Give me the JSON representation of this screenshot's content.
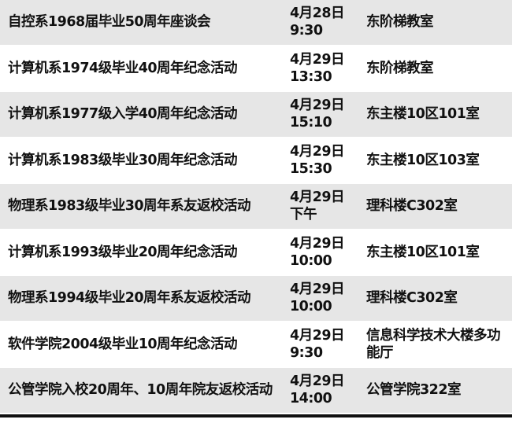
{
  "rows": [
    {
      "event": "自控系1968届毕业50周年座谈会",
      "time": "4月28日\n9:30",
      "place": "东阶梯教室"
    },
    {
      "event": "计算机系1974级毕业40周年纪念活动",
      "time": "4月29日\n13:30",
      "place": "东阶梯教室"
    },
    {
      "event": "计算机系1977级入学40周年纪念活动",
      "time": "4月29日\n15:10",
      "place": "东主楼10区101室"
    },
    {
      "event": "计算机系1983级毕业30周年纪念活动",
      "time": "4月29日\n15:30",
      "place": "东主楼10区103室"
    },
    {
      "event": "物理系1983级毕业30周年系友返校活动",
      "time": "4月29日\n下午",
      "place": "理科楼C302室"
    },
    {
      "event": "计算机系1993级毕业20周年纪念活动",
      "time": "4月29日\n10:00",
      "place": "东主楼10区101室"
    },
    {
      "event": "物理系1994级毕业20周年系友返校活动",
      "time": "4月29日\n10:00",
      "place": "理科楼C302室"
    },
    {
      "event": "软件学院2004级毕业10周年纪念活动",
      "time": "4月29日\n9:30",
      "place": "信息科学技术大楼多功能厅"
    },
    {
      "event": "公管学院入校20周年、10周年院友返校活动",
      "time": "4月29日\n14:00",
      "place": "公管学院322室"
    }
  ],
  "colors": {
    "stripe": "#e6e6e6",
    "text": "#111111"
  }
}
